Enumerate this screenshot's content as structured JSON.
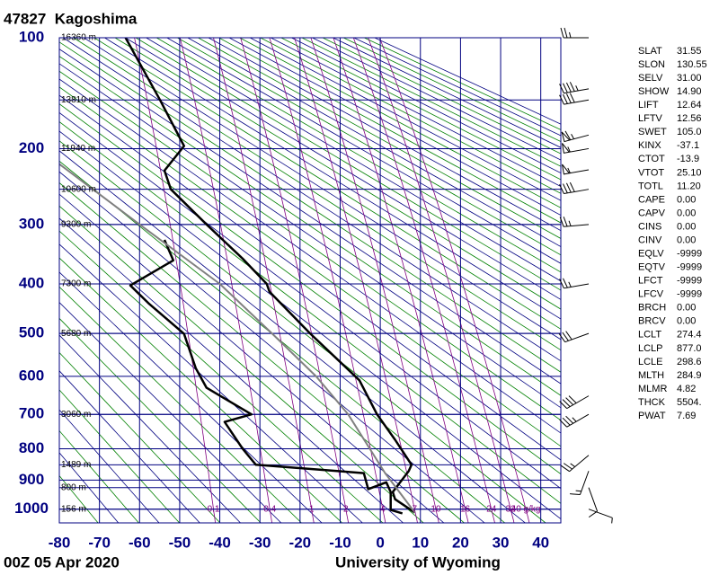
{
  "chart_data": {
    "type": "stuve",
    "title": "47827  Kagoshima",
    "footer_left": "00Z 05 Apr 2020",
    "footer_right": "University of Wyoming",
    "xlim": [
      -80,
      45
    ],
    "xticks": [
      -80,
      -70,
      -60,
      -50,
      -40,
      -30,
      -20,
      -10,
      0,
      10,
      20,
      30,
      40
    ],
    "ylim": [
      1050,
      100
    ],
    "yticks": [
      100,
      200,
      300,
      400,
      500,
      600,
      700,
      800,
      900,
      1000
    ],
    "height_labels": [
      {
        "value": 100,
        "label": "16360 m"
      },
      {
        "value": 150,
        "label": "13810 m"
      },
      {
        "value": 200,
        "label": "11940 m"
      },
      {
        "value": 250,
        "label": "10600 m"
      },
      {
        "value": 300,
        "label": "9300 m"
      },
      {
        "value": 400,
        "label": "7300 m"
      },
      {
        "value": 500,
        "label": "5680 m"
      },
      {
        "value": 700,
        "label": "3060 m"
      },
      {
        "value": 850,
        "label": "1489 m"
      },
      {
        "value": 925,
        "label": "800 m"
      },
      {
        "value": 1000,
        "label": "156 m"
      }
    ],
    "mixing_ratios": [
      0.1,
      0.4,
      1,
      2,
      4,
      7,
      10,
      16,
      24,
      32,
      {
        "value": 40,
        "label": "40 g/kg"
      }
    ],
    "mixing_color": "#800080",
    "grid_color": "#000080",
    "adiabat_color": "#008000",
    "profiles": [
      {
        "color": "#000000",
        "line_width": 2.5,
        "pressure": [
          1012,
          965,
          940,
          870,
          850,
          773,
          700,
          610,
          500,
          415,
          400,
          355,
          300,
          250,
          226,
          197,
          150,
          100
        ],
        "values": [
          8.6,
          3.7,
          3.1,
          7.1,
          7.8,
          3.7,
          -0.8,
          -5.2,
          -17.5,
          -27.6,
          -28.3,
          -34.3,
          -43.3,
          -52.2,
          -53.8,
          -48.9,
          -54.9,
          -63.5
        ]
      },
      {
        "color": "#000000",
        "line_width": 2.5,
        "pressure": [
          1015,
          1003,
          940,
          907,
          930,
          877,
          871,
          850,
          800,
          721,
          700,
          629,
          580,
          501,
          437,
          403,
          358,
          324
        ],
        "values": [
          5.5,
          2.6,
          2.6,
          1.5,
          -3.0,
          -4.1,
          -9.7,
          -31.0,
          -34.3,
          -38.8,
          -32.1,
          -43.3,
          -46.0,
          -48.9,
          -57.8,
          -62.3,
          -51.6,
          -53.8
        ]
      },
      {
        "color": "#808080",
        "line_width": 2,
        "pressure": [
          1012,
          877,
          700,
          600,
          500,
          400,
          300,
          218
        ],
        "values": [
          8.6,
          1.2,
          -8,
          -16,
          -27,
          -40,
          -60,
          -80
        ]
      }
    ],
    "winds": {
      "pressure": [
        100,
        140,
        150,
        185,
        200,
        225,
        250,
        300,
        400,
        500,
        650,
        700,
        820,
        870,
        925,
        1000
      ],
      "direction": [
        270,
        260,
        260,
        255,
        260,
        260,
        260,
        265,
        260,
        250,
        240,
        240,
        230,
        200,
        160,
        110
      ],
      "speed": [
        25,
        45,
        40,
        65,
        55,
        55,
        40,
        25,
        25,
        30,
        40,
        35,
        25,
        15,
        10,
        5
      ]
    },
    "indices": {
      "labels": [
        "SLAT",
        "SLON",
        "SELV",
        "SHOW",
        "LIFT",
        "LFTV",
        "SWET",
        "KINX",
        "CTOT",
        "VTOT",
        "TOTL",
        "CAPE",
        "CAPV",
        "CINS",
        "CINV",
        "EQLV",
        "EQTV",
        "LFCT",
        "LFCV",
        "BRCH",
        "BRCV",
        "LCLT",
        "LCLP",
        "LCLE",
        "MLTH",
        "MLMR",
        "THCK",
        "PWAT"
      ],
      "values": [
        "31.55",
        "130.55",
        "31.00",
        "14.90",
        "12.64",
        "12.56",
        "105.0",
        "-37.1",
        "-13.9",
        "25.10",
        "11.20",
        "0.00",
        "0.00",
        "0.00",
        "0.00",
        "-9999",
        "-9999",
        "-9999",
        "-9999",
        "0.00",
        "0.00",
        "274.4",
        "877.0",
        "298.6",
        "284.9",
        "4.82",
        "5504.",
        "7.69"
      ]
    }
  }
}
